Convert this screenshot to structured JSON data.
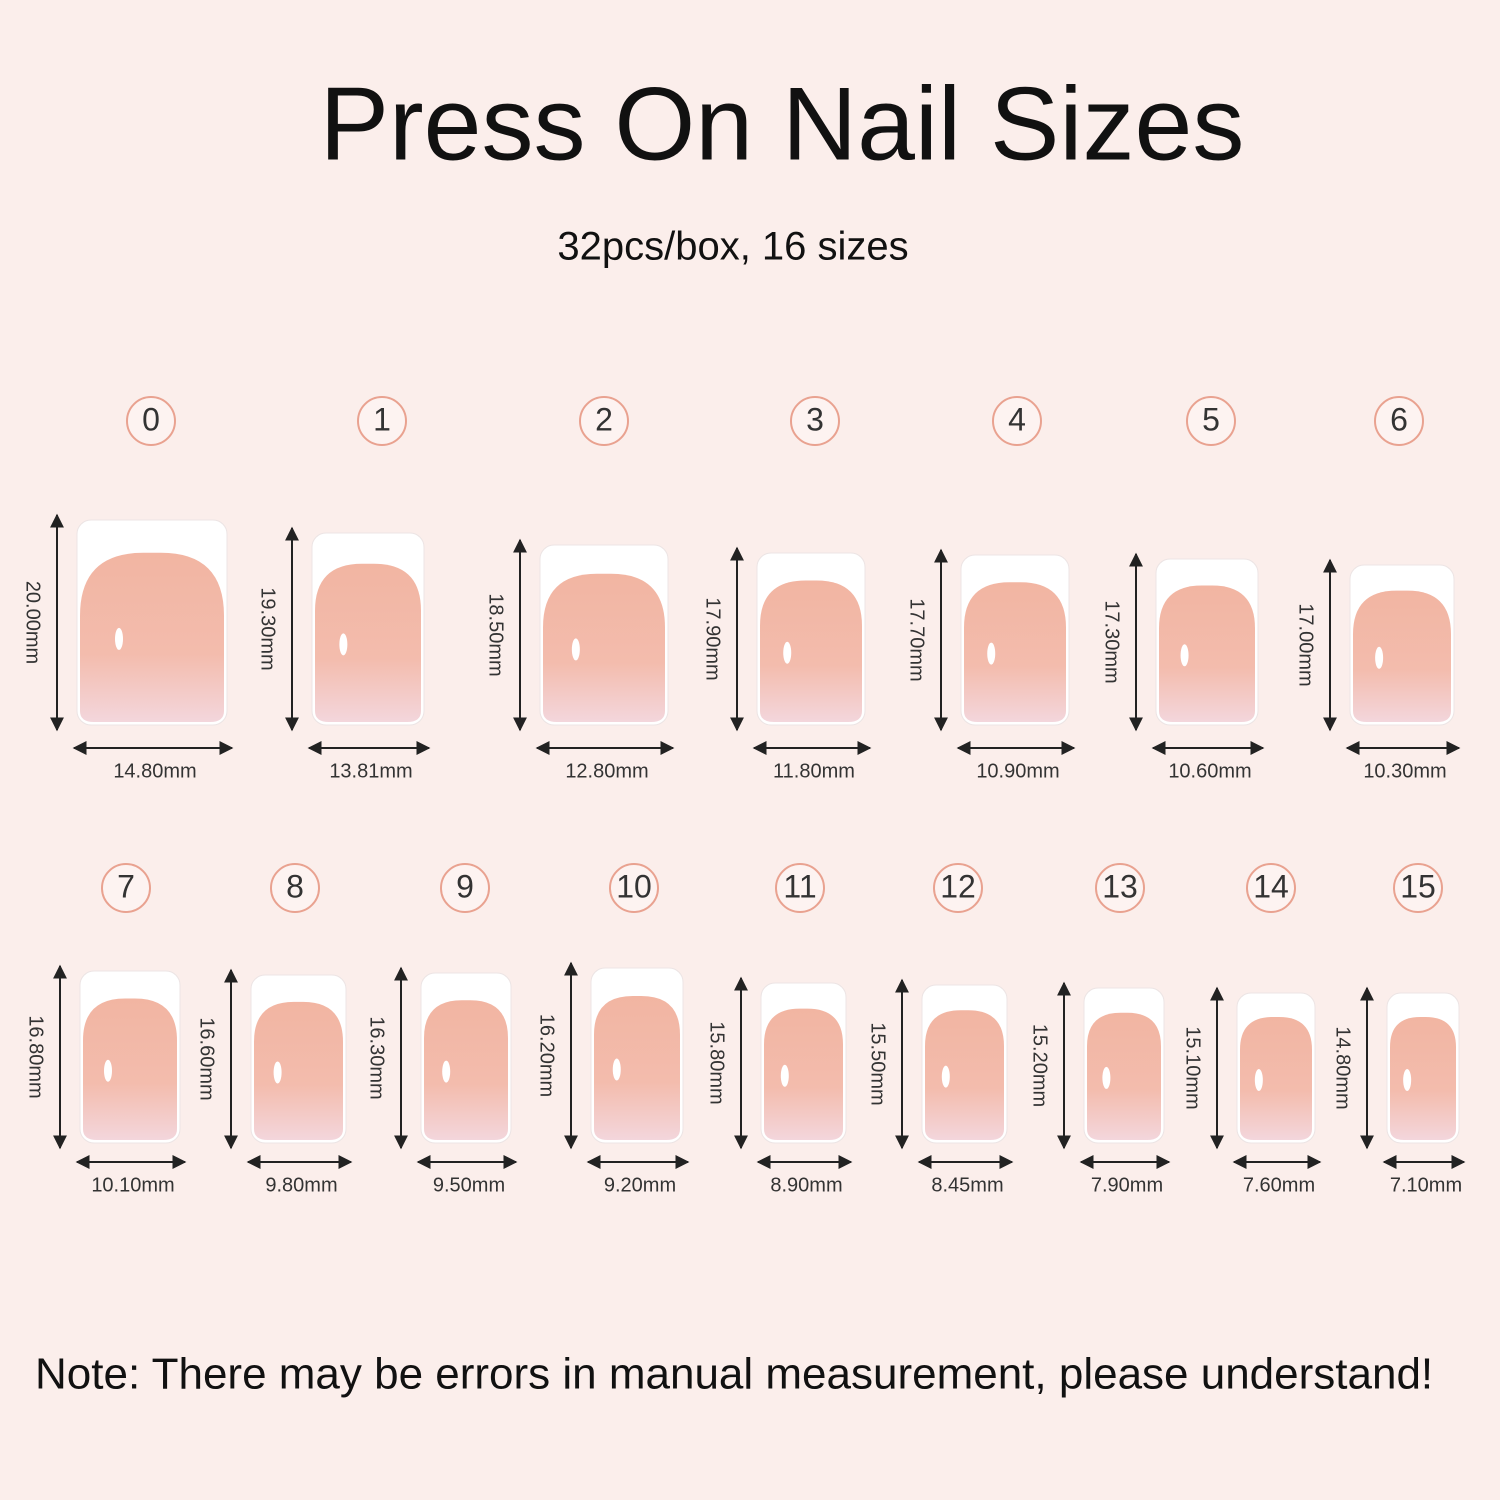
{
  "header": {
    "title": "Press On Nail Sizes",
    "subtitle": "32pcs/box, 16 sizes"
  },
  "nails": [
    {
      "number": "0",
      "length": "20.00mm",
      "width": "14.80mm"
    },
    {
      "number": "1",
      "length": "19.30mm",
      "width": "13.81mm"
    },
    {
      "number": "2",
      "length": "18.50mm",
      "width": "12.80mm"
    },
    {
      "number": "3",
      "length": "17.90mm",
      "width": "11.80mm"
    },
    {
      "number": "4",
      "length": "17.70mm",
      "width": "10.90mm"
    },
    {
      "number": "5",
      "length": "17.30mm",
      "width": "10.60mm"
    },
    {
      "number": "6",
      "length": "17.00mm",
      "width": "10.30mm"
    },
    {
      "number": "7",
      "length": "16.80mm",
      "width": "10.10mm"
    },
    {
      "number": "8",
      "length": "16.60mm",
      "width": "9.80mm"
    },
    {
      "number": "9",
      "length": "16.30mm",
      "width": "9.50mm"
    },
    {
      "number": "10",
      "length": "16.20mm",
      "width": "9.20mm"
    },
    {
      "number": "11",
      "length": "15.80mm",
      "width": "8.90mm"
    },
    {
      "number": "12",
      "length": "15.50mm",
      "width": "8.45mm"
    },
    {
      "number": "13",
      "length": "15.20mm",
      "width": "7.90mm"
    },
    {
      "number": "14",
      "length": "15.10mm",
      "width": "7.60mm"
    },
    {
      "number": "15",
      "length": "14.80mm",
      "width": "7.10mm"
    }
  ],
  "note": "Note: There may be errors in manual measurement, please understand!"
}
